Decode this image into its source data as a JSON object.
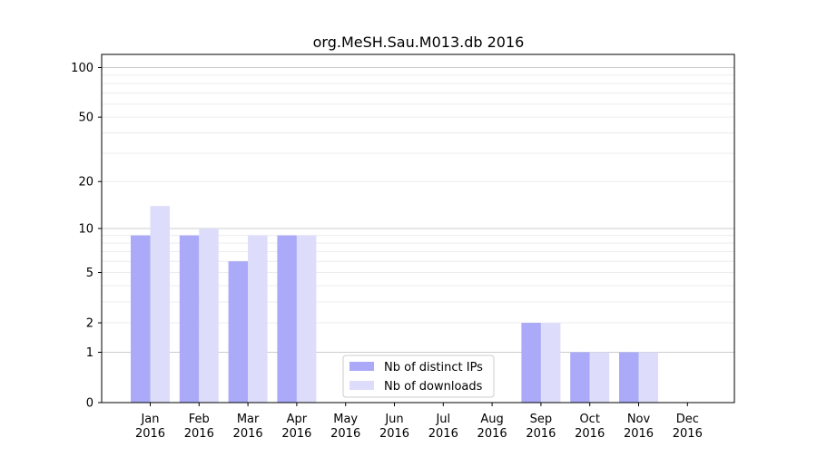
{
  "chart_data": {
    "type": "bar",
    "title": "org.MeSH.Sau.M013.db 2016",
    "xlabel": "",
    "ylabel": "",
    "y_scale": "log(1 + y)",
    "ylim": [
      0,
      120
    ],
    "y_ticks": [
      0,
      1,
      2,
      5,
      10,
      20,
      50,
      100
    ],
    "y_tick_labels": [
      "0",
      "1",
      "2",
      "5",
      "10",
      "20",
      "50",
      "100"
    ],
    "grid": "horizontal",
    "legend_position": "lower-center",
    "categories": [
      {
        "month": "Jan",
        "year": "2016"
      },
      {
        "month": "Feb",
        "year": "2016"
      },
      {
        "month": "Mar",
        "year": "2016"
      },
      {
        "month": "Apr",
        "year": "2016"
      },
      {
        "month": "May",
        "year": "2016"
      },
      {
        "month": "Jun",
        "year": "2016"
      },
      {
        "month": "Jul",
        "year": "2016"
      },
      {
        "month": "Aug",
        "year": "2016"
      },
      {
        "month": "Sep",
        "year": "2016"
      },
      {
        "month": "Oct",
        "year": "2016"
      },
      {
        "month": "Nov",
        "year": "2016"
      },
      {
        "month": "Dec",
        "year": "2016"
      }
    ],
    "series": [
      {
        "name": "Nb of distinct IPs",
        "color": "#aaaaf8",
        "values": [
          9,
          9,
          6,
          9,
          0,
          0,
          0,
          0,
          2,
          1,
          1,
          0
        ]
      },
      {
        "name": "Nb of downloads",
        "color": "#ddddfb",
        "values": [
          14,
          10,
          9,
          9,
          0,
          0,
          0,
          0,
          2,
          1,
          1,
          0
        ]
      }
    ]
  }
}
